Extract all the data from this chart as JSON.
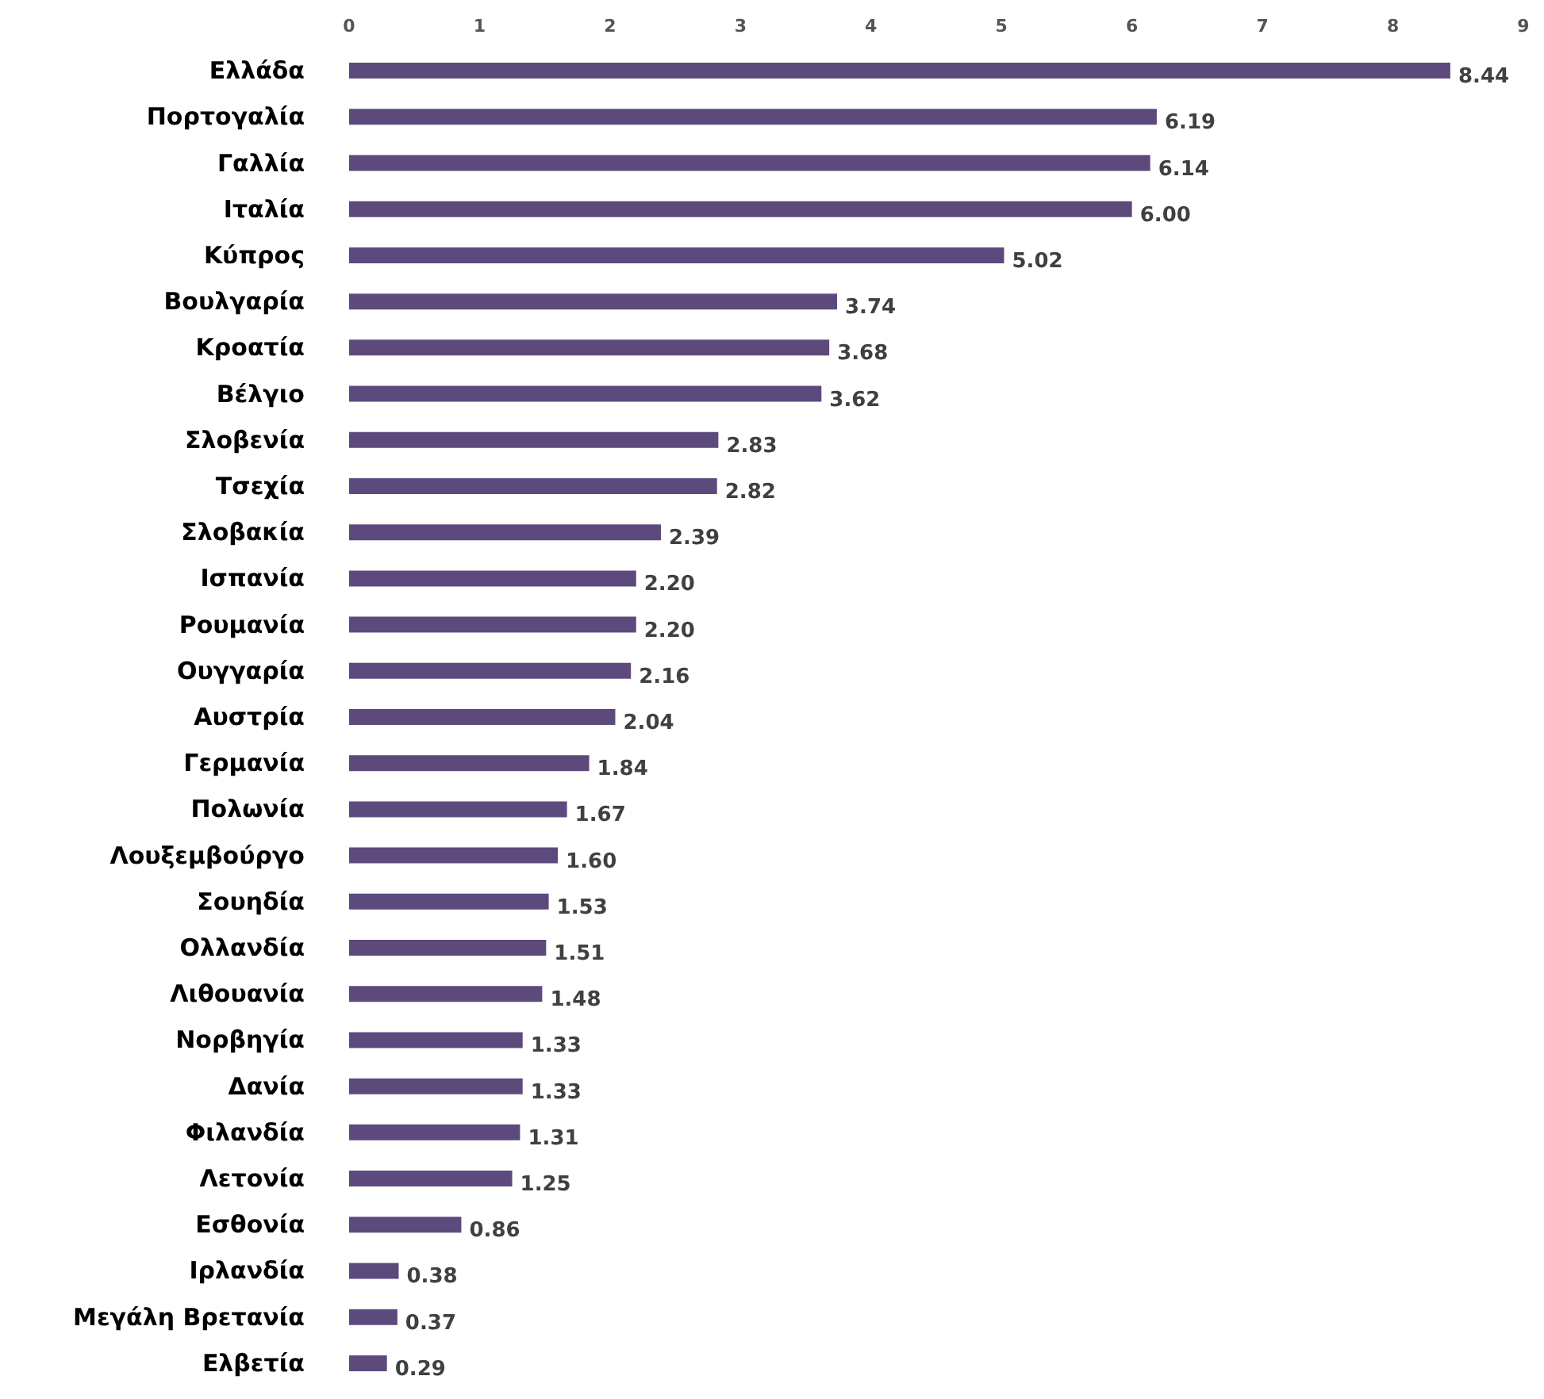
{
  "chart_data": {
    "type": "bar",
    "orientation": "horizontal",
    "categories": [
      "Ελλάδα",
      "Πορτογαλία",
      "Γαλλία",
      "Ιταλία",
      "Κύπρος",
      "Βουλγαρία",
      "Κροατία",
      "Βέλγιο",
      "Σλοβενία",
      "Τσεχία",
      "Σλοβακία",
      "Ισπανία",
      "Ρουμανία",
      "Ουγγαρία",
      "Αυστρία",
      "Γερμανία",
      "Πολωνία",
      "Λουξεμβούργο",
      "Σουηδία",
      "Ολλανδία",
      "Λιθουανία",
      "Νορβηγία",
      "Δανία",
      "Φιλανδία",
      "Λετονία",
      "Εσθονία",
      "Ιρλανδία",
      "Μεγάλη Βρετανία",
      "Ελβετία"
    ],
    "values": [
      8.44,
      6.19,
      6.14,
      6.0,
      5.02,
      3.74,
      3.68,
      3.62,
      2.83,
      2.82,
      2.39,
      2.2,
      2.2,
      2.16,
      2.04,
      1.84,
      1.67,
      1.6,
      1.53,
      1.51,
      1.48,
      1.33,
      1.33,
      1.31,
      1.25,
      0.86,
      0.38,
      0.37,
      0.29
    ],
    "value_labels": [
      "8.44",
      "6.19",
      "6.14",
      "6.00",
      "5.02",
      "3.74",
      "3.68",
      "3.62",
      "2.83",
      "2.82",
      "2.39",
      "2.20",
      "2.20",
      "2.16",
      "2.04",
      "1.84",
      "1.67",
      "1.60",
      "1.53",
      "1.51",
      "1.48",
      "1.33",
      "1.33",
      "1.31",
      "1.25",
      "0.86",
      "0.38",
      "0.37",
      "0.29"
    ],
    "color": "#5c4a7d",
    "xlim": [
      0,
      9
    ],
    "xticks": [
      0,
      1,
      2,
      3,
      4,
      5,
      6,
      7,
      8,
      9
    ]
  }
}
